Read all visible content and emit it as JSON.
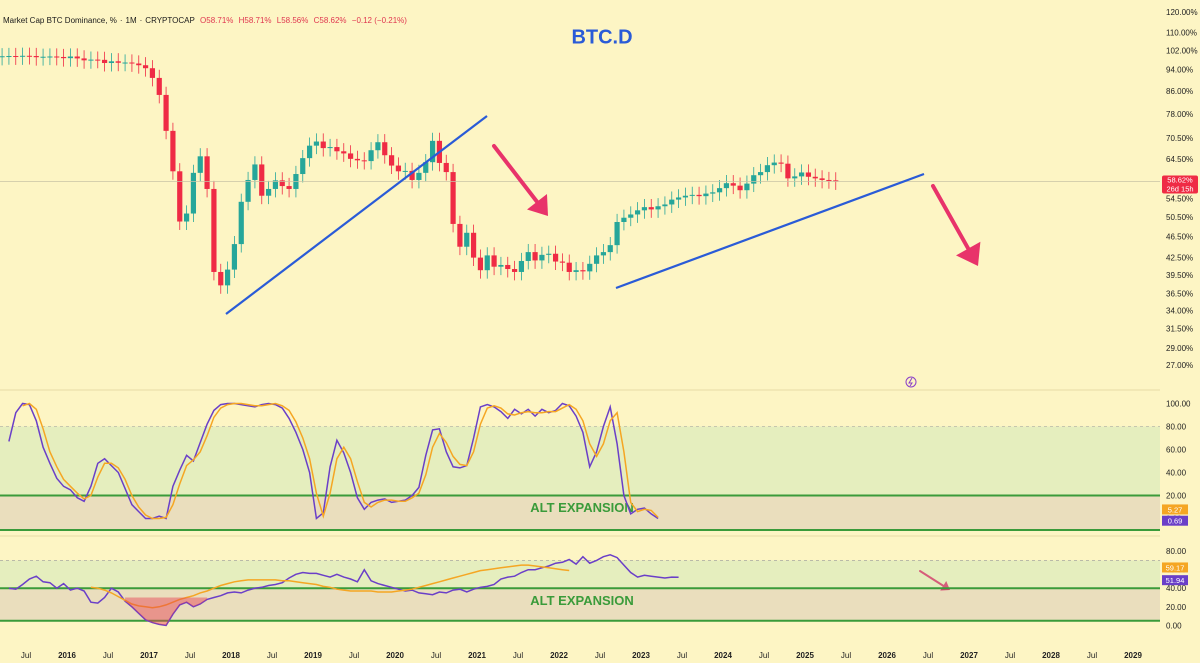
{
  "header": {
    "symbol": "Market Cap BTC Dominance, %",
    "interval": "1M",
    "exchange": "CRYPTOCAP",
    "open": "O58.71%",
    "high": "H58.71%",
    "low": "L58.56%",
    "close": "C58.62%",
    "change": "−0.12 (−0.21%)"
  },
  "colors": {
    "background": "#fdf5c4",
    "up": "#26a69a",
    "down": "#ef2b45",
    "trendline": "#2a5bd7",
    "arrow": "#e8336a",
    "rsi": "#6a3fc8",
    "signal": "#f5a623",
    "zone": "#3a9b3a"
  },
  "chart_data": [
    {
      "type": "candlestick",
      "title": "BTC.D",
      "scale": "log",
      "ylim": [
        24.5,
        122
      ],
      "y_ticks": [
        "120.00%",
        "110.00%",
        "102.00%",
        "94.00%",
        "86.00%",
        "78.00%",
        "70.50%",
        "64.50%",
        "54.50%",
        "50.50%",
        "46.50%",
        "42.50%",
        "39.50%",
        "36.50%",
        "34.00%",
        "31.50%",
        "29.00%",
        "27.00%"
      ],
      "last_price_label": "58.62%",
      "countdown_label": "26d 15h",
      "x_labels": [
        "Jul",
        "2016",
        "Jul",
        "2017",
        "Jul",
        "2018",
        "Jul",
        "2019",
        "Jul",
        "2020",
        "Jul",
        "2021",
        "Jul",
        "2022",
        "Jul",
        "2023",
        "Jul",
        "2024",
        "Jul",
        "2025",
        "Jul",
        "2026",
        "Jul",
        "2027",
        "Jul",
        "2028",
        "Jul",
        "2029"
      ],
      "start_month": "2015-01",
      "close_series": [
        99.5,
        99.2,
        99.5,
        99.6,
        99.4,
        99.7,
        99.6,
        99.1,
        99.3,
        99.4,
        99.2,
        98.7,
        99.4,
        98.6,
        97.8,
        98.1,
        98.0,
        96.7,
        97.4,
        96.8,
        96.9,
        96.5,
        95.8,
        94.6,
        90.8,
        84.5,
        72.6,
        61.2,
        49.5,
        51.2,
        60.8,
        65.2,
        56.8,
        40.0,
        37.8,
        40.4,
        45.0,
        53.8,
        59.0,
        63.0,
        55.2,
        56.8,
        58.9,
        57.5,
        56.8,
        60.5,
        64.7,
        68.2,
        69.4,
        67.5,
        67.8,
        66.6,
        66.0,
        64.5,
        64.1,
        63.9,
        66.9,
        69.2,
        65.5,
        62.7,
        61.2,
        61.3,
        59.0,
        60.8,
        63.6,
        69.6,
        63.4,
        61.0,
        49.0,
        44.5,
        47.2,
        42.5,
        40.3,
        42.9,
        40.9,
        41.2,
        40.5,
        40.0,
        41.9,
        43.5,
        42.0,
        43.0,
        43.2,
        41.8,
        41.6,
        40.0,
        40.3,
        40.1,
        41.4,
        42.9,
        43.5,
        44.8,
        49.4,
        50.3,
        51.0,
        51.9,
        52.6,
        52.1,
        52.8,
        53.2,
        54.3,
        54.8,
        55.2,
        55.4,
        55.1,
        55.7,
        56.0,
        57.0,
        58.2,
        57.6,
        56.5,
        58.1,
        60.2,
        61.0,
        62.8,
        63.5,
        63.2,
        59.4,
        59.9,
        60.9,
        59.8,
        59.4,
        59.0,
        58.9,
        58.62
      ]
    },
    {
      "type": "line",
      "ylim": [
        -10,
        110
      ],
      "y_ticks": [
        "100.00",
        "80.00",
        "60.00",
        "40.00",
        "20.00",
        "0.00"
      ],
      "label_values": [
        "5.27",
        "0.69"
      ],
      "zone_label": "ALT EXPANSION",
      "start_month": "2015-04",
      "series": [
        {
          "color": "#6a3fc8",
          "values": [
            67,
            92,
            100,
            99,
            85,
            62,
            48,
            35,
            28,
            25,
            18,
            15,
            28,
            48,
            52,
            46,
            40,
            26,
            12,
            6,
            0,
            0,
            2,
            0,
            28,
            42,
            55,
            50,
            66,
            82,
            94,
            99,
            100,
            100,
            99,
            98,
            97,
            99,
            100,
            99,
            96,
            87,
            75,
            60,
            40,
            0,
            5,
            45,
            68,
            57,
            40,
            18,
            8,
            14,
            16,
            17,
            14,
            15,
            16,
            20,
            27,
            55,
            77,
            78,
            58,
            45,
            44,
            46,
            70,
            97,
            99,
            97,
            93,
            87,
            95,
            91,
            95,
            89,
            95,
            92,
            94,
            100,
            98,
            89,
            75,
            45,
            58,
            80,
            97,
            65,
            20,
            4,
            8,
            9,
            4,
            0
          ]
        },
        {
          "color": "#f5a623",
          "values": [
            null,
            null,
            98,
            100,
            95,
            78,
            58,
            45,
            34,
            28,
            22,
            17,
            20,
            36,
            48,
            48,
            44,
            34,
            20,
            10,
            3,
            0,
            0,
            1,
            12,
            30,
            46,
            51,
            58,
            72,
            88,
            96,
            99,
            100,
            100,
            99,
            98,
            98,
            99,
            100,
            98,
            94,
            84,
            70,
            52,
            22,
            2,
            22,
            52,
            62,
            52,
            32,
            14,
            10,
            14,
            16,
            16,
            15,
            15,
            18,
            22,
            38,
            62,
            74,
            66,
            54,
            47,
            46,
            58,
            82,
            96,
            98,
            96,
            91,
            90,
            92,
            93,
            92,
            92,
            93,
            93,
            96,
            99,
            95,
            85,
            65,
            54,
            65,
            85,
            92,
            58,
            14,
            6,
            8,
            7,
            1
          ]
        }
      ]
    },
    {
      "type": "line",
      "ylim": [
        -5,
        92
      ],
      "y_ticks": [
        "80.00",
        "60.00",
        "40.00",
        "20.00",
        "0.00"
      ],
      "label_values": [
        "59.17",
        "51.94"
      ],
      "zone_label": "ALT EXPANSION",
      "start_month": "2015-04",
      "series": [
        {
          "color": "#6a3fc8",
          "values": [
            40,
            39,
            44,
            50,
            53,
            47,
            46,
            40,
            45,
            38,
            40,
            37,
            25,
            24,
            30,
            40,
            36,
            26,
            20,
            13,
            6,
            3,
            1,
            0,
            12,
            22,
            25,
            20,
            23,
            28,
            30,
            32,
            35,
            36,
            35,
            38,
            40,
            41,
            43,
            44,
            46,
            51,
            55,
            57,
            56,
            56,
            54,
            52,
            55,
            52,
            50,
            47,
            60,
            48,
            45,
            43,
            41,
            39,
            37,
            38,
            35,
            34,
            33,
            36,
            35,
            38,
            39,
            36,
            39,
            41,
            42,
            44,
            50,
            52,
            53,
            57,
            60,
            60,
            62,
            64,
            67,
            68,
            71,
            66,
            74,
            67,
            70,
            74,
            76,
            73,
            65,
            57,
            52,
            54,
            53,
            52,
            51,
            52,
            51.94
          ]
        },
        {
          "color": "#f5a623",
          "values": [
            null,
            null,
            null,
            null,
            null,
            null,
            null,
            null,
            null,
            null,
            null,
            null,
            41,
            40,
            38,
            35,
            31,
            27,
            23,
            21,
            20,
            19,
            20,
            22,
            25,
            28,
            30,
            32,
            35,
            37,
            40,
            43,
            45,
            47,
            48,
            49,
            49,
            49,
            49,
            49,
            48,
            48,
            47,
            46,
            45,
            44,
            42,
            41,
            39,
            38,
            37,
            37,
            37,
            37,
            36,
            36,
            36,
            37,
            38,
            39,
            41,
            43,
            45,
            47,
            49,
            51,
            53,
            55,
            57,
            59,
            60,
            61,
            62,
            63,
            64,
            65,
            65,
            64,
            63,
            62,
            61,
            60,
            59.17
          ]
        }
      ]
    }
  ]
}
